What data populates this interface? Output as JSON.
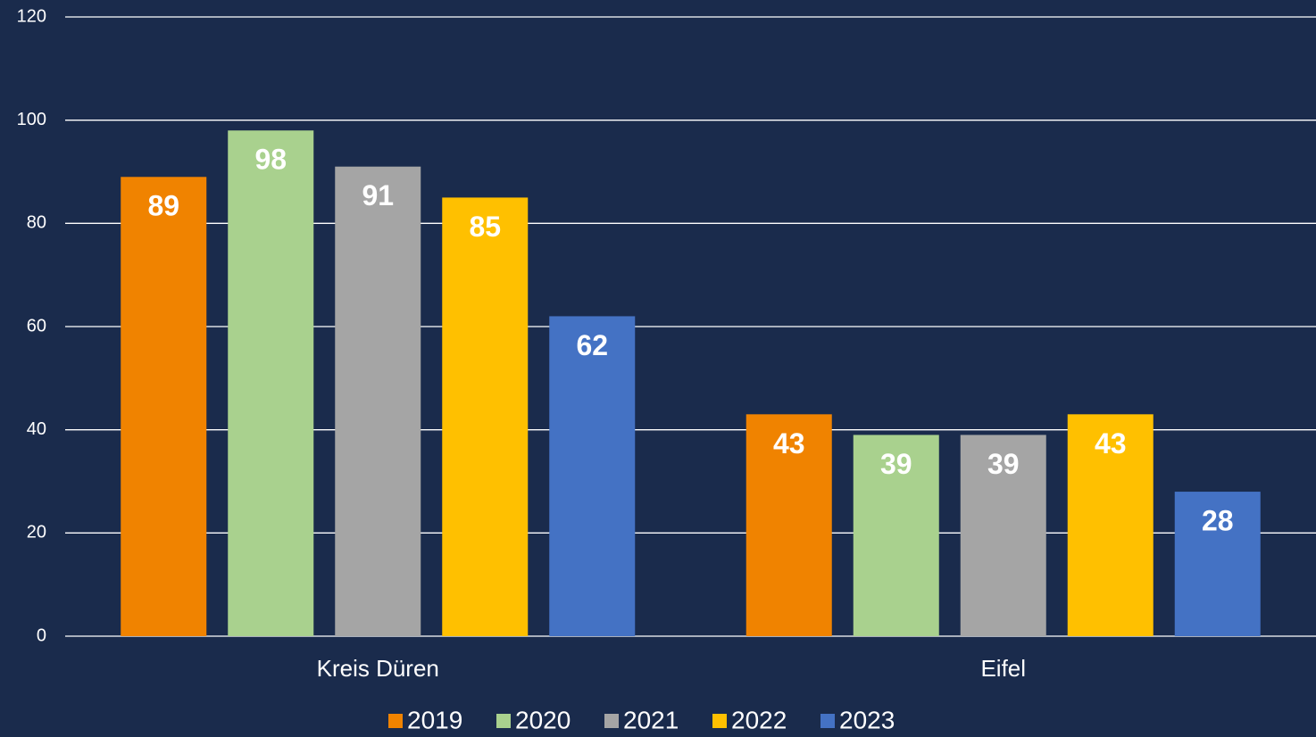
{
  "chart_data": {
    "type": "bar",
    "categories": [
      "Kreis Düren",
      "Eifel"
    ],
    "series": [
      {
        "name": "2019",
        "color": "#f08300",
        "values": [
          89,
          43
        ]
      },
      {
        "name": "2020",
        "color": "#a9d18e",
        "values": [
          98,
          39
        ]
      },
      {
        "name": "2021",
        "color": "#a5a5a5",
        "values": [
          91,
          39
        ]
      },
      {
        "name": "2022",
        "color": "#ffc000",
        "values": [
          85,
          43
        ]
      },
      {
        "name": "2023",
        "color": "#4472c4",
        "values": [
          62,
          28
        ]
      }
    ],
    "ylim": [
      0,
      120
    ],
    "yticks": [
      0,
      20,
      40,
      60,
      80,
      100,
      120
    ],
    "grid": true,
    "legend": "bottom"
  }
}
